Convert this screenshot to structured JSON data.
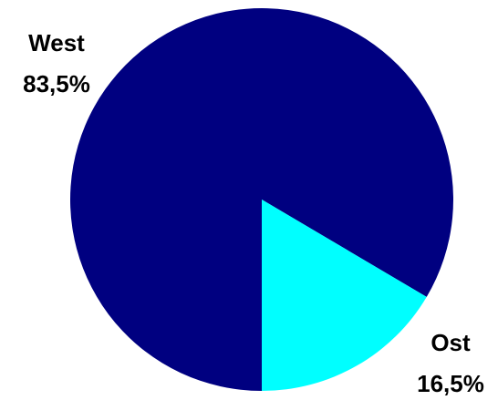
{
  "chart_data": {
    "type": "pie",
    "title": "",
    "legend": "none",
    "slices": [
      {
        "label": "West",
        "value_label": "83,5%",
        "value": 83.5,
        "color": "#000080"
      },
      {
        "label": "Ost",
        "value_label": "16,5%",
        "value": 16.5,
        "color": "#00FFFF"
      }
    ]
  }
}
